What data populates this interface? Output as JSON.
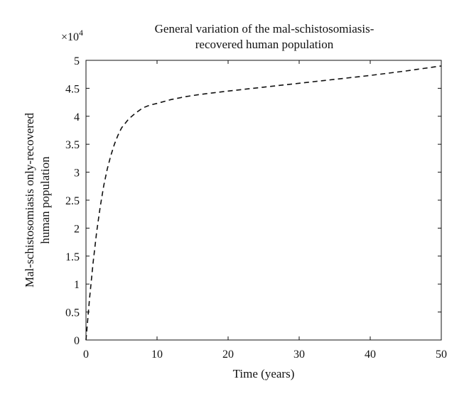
{
  "chart_data": {
    "type": "line",
    "title_lines": [
      "General variation of the mal-schistosomiasis-",
      "recovered human population"
    ],
    "xlabel": "Time (years)",
    "ylabel_lines": [
      "Mal-schistosomiasis only-recovered",
      "human population"
    ],
    "y_multiplier": "×10",
    "y_multiplier_exp": "4",
    "xlim": [
      0,
      50
    ],
    "ylim": [
      0,
      5
    ],
    "xticks": [
      "0",
      "10",
      "20",
      "30",
      "40",
      "50"
    ],
    "yticks": [
      "0",
      "0.5",
      "1",
      "1.5",
      "2",
      "2.5",
      "3",
      "3.5",
      "4",
      "4.5",
      "5"
    ],
    "grid": false,
    "line_style": "dashed",
    "line_color": "#111111",
    "series": [
      {
        "x": [
          0,
          0.5,
          1,
          1.5,
          2,
          2.5,
          3,
          3.5,
          4,
          4.5,
          5,
          6,
          7,
          8,
          9,
          10,
          12,
          14,
          16,
          18,
          20,
          25,
          30,
          35,
          40,
          45,
          50
        ],
        "values": [
          0,
          0.74,
          1.38,
          1.93,
          2.38,
          2.76,
          3.06,
          3.3,
          3.5,
          3.66,
          3.79,
          3.95,
          4.06,
          4.15,
          4.2,
          4.23,
          4.3,
          4.35,
          4.39,
          4.42,
          4.45,
          4.52,
          4.59,
          4.66,
          4.73,
          4.81,
          4.9
        ]
      }
    ]
  }
}
